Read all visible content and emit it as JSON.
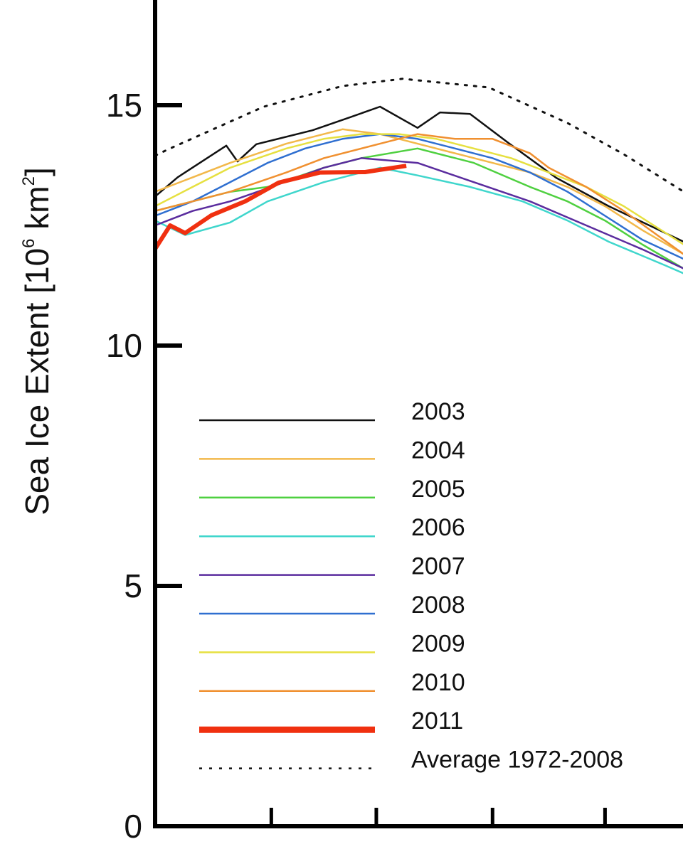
{
  "chart_data": {
    "type": "line",
    "title": "",
    "xlabel": "",
    "ylabel": "Sea Ice Extent [10",
    "ylabel_sup1": "6",
    "ylabel_mid": " km",
    "ylabel_sup2": "2",
    "ylabel_end": "]",
    "ylim": [
      0,
      15
    ],
    "xlim_days": [
      0,
      141
    ],
    "y_ticks": [
      0,
      5,
      10,
      15
    ],
    "y_tick_labels": [
      "0",
      "5",
      "10",
      "15"
    ],
    "x_ticks_days": [
      31,
      59,
      90,
      120
    ],
    "grid": false,
    "legend_position": "bottom-left",
    "series": [
      {
        "name": "2003",
        "color": "#111111",
        "width": 2.5,
        "x": [
          0,
          6,
          19,
          22,
          27,
          42,
          52,
          60,
          70,
          76,
          84,
          94,
          107,
          121,
          141
        ],
        "y": [
          13.1,
          13.5,
          14.16,
          13.83,
          14.19,
          14.48,
          14.75,
          14.97,
          14.53,
          14.85,
          14.82,
          14.23,
          13.49,
          12.9,
          12.16
        ]
      },
      {
        "name": "2004",
        "color": "#f2b84a",
        "width": 2.5,
        "x": [
          0,
          10,
          20,
          35,
          50,
          60,
          70,
          80,
          90,
          100,
          110,
          120,
          130,
          141
        ],
        "y": [
          13.2,
          13.5,
          13.8,
          14.2,
          14.5,
          14.4,
          14.2,
          14.0,
          13.8,
          13.6,
          13.3,
          12.9,
          12.4,
          11.9
        ]
      },
      {
        "name": "2005",
        "color": "#4fd040",
        "width": 2.5,
        "x": [
          0,
          10,
          20,
          30,
          45,
          55,
          70,
          85,
          100,
          110,
          120,
          130,
          141
        ],
        "y": [
          12.8,
          13.0,
          13.2,
          13.3,
          13.7,
          13.9,
          14.1,
          13.8,
          13.3,
          13.0,
          12.6,
          12.1,
          11.6
        ]
      },
      {
        "name": "2006",
        "color": "#3fd6cc",
        "width": 2.5,
        "x": [
          0,
          8,
          20,
          30,
          45,
          60,
          70,
          84,
          98,
          110,
          121,
          136,
          141
        ],
        "y": [
          12.6,
          12.3,
          12.56,
          13.0,
          13.4,
          13.7,
          13.54,
          13.3,
          13.0,
          12.6,
          12.16,
          11.67,
          11.5
        ]
      },
      {
        "name": "2007",
        "color": "#5a2c9e",
        "width": 2.5,
        "x": [
          0,
          10,
          20,
          31,
          45,
          55,
          70,
          85,
          100,
          115,
          130,
          141
        ],
        "y": [
          12.5,
          12.8,
          13.0,
          13.3,
          13.7,
          13.9,
          13.8,
          13.4,
          13.0,
          12.5,
          12.0,
          11.6
        ]
      },
      {
        "name": "2008",
        "color": "#2f6fd0",
        "width": 2.5,
        "x": [
          0,
          10,
          20,
          30,
          40,
          50,
          60,
          70,
          80,
          90,
          100,
          110,
          120,
          130,
          141
        ],
        "y": [
          12.7,
          13.0,
          13.4,
          13.8,
          14.1,
          14.3,
          14.4,
          14.3,
          14.1,
          13.9,
          13.6,
          13.2,
          12.7,
          12.2,
          11.8
        ]
      },
      {
        "name": "2009",
        "color": "#e6e040",
        "width": 2.5,
        "x": [
          0,
          10,
          20,
          35,
          45,
          55,
          65,
          75,
          85,
          95,
          105,
          115,
          125,
          141
        ],
        "y": [
          12.9,
          13.3,
          13.7,
          14.1,
          14.3,
          14.4,
          14.4,
          14.3,
          14.1,
          13.9,
          13.6,
          13.3,
          12.9,
          12.1
        ]
      },
      {
        "name": "2010",
        "color": "#f09030",
        "width": 2.5,
        "x": [
          0,
          10,
          20,
          35,
          45,
          60,
          70,
          80,
          90,
          100,
          105,
          115,
          125,
          141
        ],
        "y": [
          12.8,
          13.0,
          13.2,
          13.6,
          13.9,
          14.2,
          14.4,
          14.3,
          14.3,
          14.0,
          13.7,
          13.3,
          12.8,
          11.9
        ]
      },
      {
        "name": "2011",
        "color": "#f03010",
        "width": 6,
        "x": [
          0,
          4,
          8,
          15,
          24,
          33,
          44,
          56,
          67
        ],
        "y": [
          12.01,
          12.5,
          12.34,
          12.71,
          13.0,
          13.39,
          13.6,
          13.61,
          13.74
        ]
      },
      {
        "name": "Average 1972-2008",
        "color": "#111111",
        "width": 3,
        "dashed": true,
        "x": [
          0,
          3.4,
          29,
          50,
          66,
          89,
          110,
          125,
          141
        ],
        "y": [
          13.95,
          14.08,
          14.97,
          15.4,
          15.55,
          15.37,
          14.63,
          13.98,
          13.2
        ]
      }
    ]
  }
}
